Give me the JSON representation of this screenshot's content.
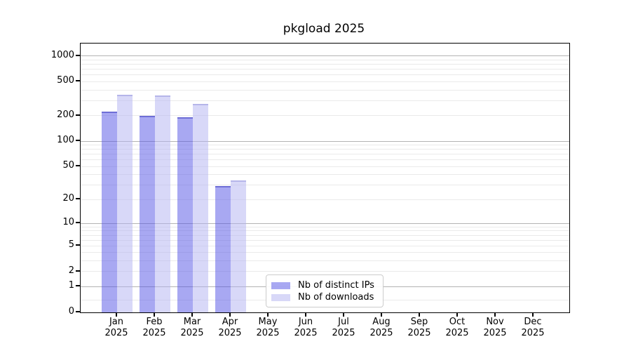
{
  "title": "pkgload 2025",
  "chart_data": {
    "type": "bar",
    "title": "pkgload 2025",
    "y_scale": "log1p",
    "ylim": [
      0,
      1400
    ],
    "grid": "horizontal",
    "legend_position": "inside-bottom-center",
    "categories": [
      "Jan",
      "Feb",
      "Mar",
      "Apr",
      "May",
      "Jun",
      "Jul",
      "Aug",
      "Sep",
      "Oct",
      "Nov",
      "Dec"
    ],
    "year": "2025",
    "series": [
      {
        "name": "Nb of distinct IPs",
        "color": "#a8a8f2",
        "fill": "rgba(81,81,229,0.5)",
        "cap": "rgba(40,40,180,0.45)",
        "values": [
          222,
          198,
          192,
          29,
          null,
          null,
          null,
          null,
          null,
          null,
          null,
          null
        ]
      },
      {
        "name": "Nb of downloads",
        "color": "#d8d8f8",
        "fill": "rgba(177,177,241,0.5)",
        "cap": "rgba(140,140,215,0.45)",
        "values": [
          352,
          347,
          276,
          34,
          null,
          null,
          null,
          null,
          null,
          null,
          null,
          null
        ]
      }
    ],
    "y_ticks": [
      {
        "v": 0,
        "label": "0"
      },
      {
        "v": 1,
        "label": "1"
      },
      {
        "v": 2,
        "label": "2"
      },
      {
        "v": 5,
        "label": "5"
      },
      {
        "v": 10,
        "label": "10"
      },
      {
        "v": 20,
        "label": "20"
      },
      {
        "v": 50,
        "label": "50"
      },
      {
        "v": 100,
        "label": "100"
      },
      {
        "v": 200,
        "label": "200"
      },
      {
        "v": 500,
        "label": "500"
      },
      {
        "v": 1000,
        "label": "1000"
      }
    ],
    "y_grid_major": [
      1,
      10,
      100,
      1000
    ],
    "y_grid_minor": [
      0.4,
      2,
      3,
      4,
      5,
      6,
      7,
      8,
      9,
      20,
      30,
      40,
      50,
      60,
      70,
      80,
      90,
      200,
      300,
      400,
      500,
      600,
      700,
      800,
      900
    ]
  },
  "colors": {
    "background": "#ffffff",
    "axis": "#000000",
    "grid_major": "#b3b3b3",
    "grid_minor": "#eaeaea",
    "text": "#000000",
    "legend_border": "#cccccc"
  }
}
